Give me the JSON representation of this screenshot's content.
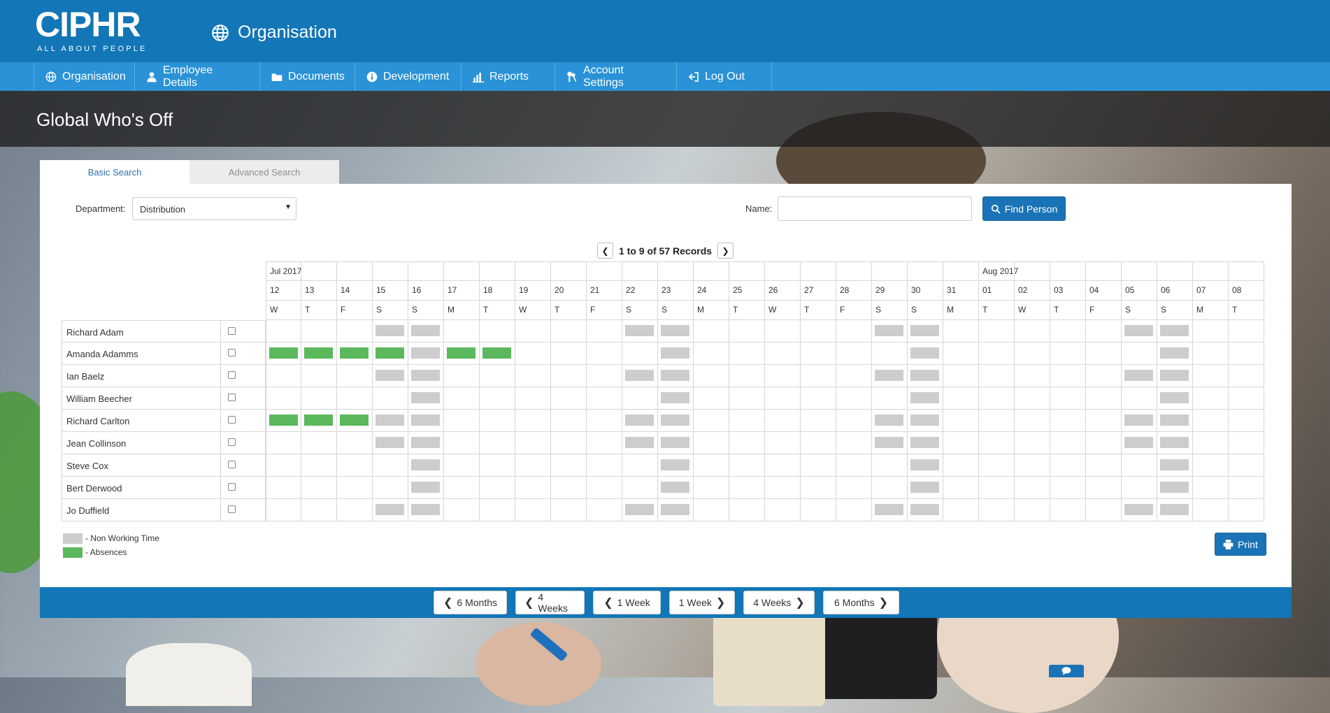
{
  "brand": {
    "name": "CIPHR",
    "tagline": "ALL ABOUT PEOPLE"
  },
  "header": {
    "section_title": "Organisation",
    "section_icon": "globe-icon"
  },
  "nav": [
    {
      "label": "Organisation",
      "icon": "globe-icon"
    },
    {
      "label": "Employee Details",
      "icon": "user-icon"
    },
    {
      "label": "Documents",
      "icon": "folder-icon"
    },
    {
      "label": "Development",
      "icon": "info-icon"
    },
    {
      "label": "Reports",
      "icon": "bar-chart-icon"
    },
    {
      "label": "Account Settings",
      "icon": "keys-icon"
    },
    {
      "label": "Log Out",
      "icon": "logout-icon"
    }
  ],
  "page": {
    "title": "Global Who's Off"
  },
  "search": {
    "tabs": {
      "basic": "Basic Search",
      "advanced": "Advanced Search",
      "active": "basic"
    },
    "department_label": "Department:",
    "department_value": "Distribution",
    "name_label": "Name:",
    "name_value": "",
    "find_button": "Find Person"
  },
  "pager": {
    "text": "1 to 9 of 57 Records"
  },
  "calendar": {
    "months": [
      {
        "label": "Jul 2017",
        "start_index": 0
      },
      {
        "label": "Aug 2017",
        "start_index": 20
      }
    ],
    "dates": [
      "12",
      "13",
      "14",
      "15",
      "16",
      "17",
      "18",
      "19",
      "20",
      "21",
      "22",
      "23",
      "24",
      "25",
      "26",
      "27",
      "28",
      "29",
      "30",
      "31",
      "01",
      "02",
      "03",
      "04",
      "05",
      "06",
      "07",
      "08"
    ],
    "weekdays": [
      "W",
      "T",
      "F",
      "S",
      "S",
      "M",
      "T",
      "W",
      "T",
      "F",
      "S",
      "S",
      "M",
      "T",
      "W",
      "T",
      "F",
      "S",
      "S",
      "M",
      "T",
      "W",
      "T",
      "F",
      "S",
      "S",
      "M",
      "T"
    ]
  },
  "employees": [
    {
      "name": "Richard Adam",
      "nonworking": [
        3,
        4,
        10,
        11,
        17,
        18,
        24,
        25
      ],
      "absences": []
    },
    {
      "name": "Amanda Adamms",
      "nonworking": [
        4,
        11,
        18,
        25
      ],
      "absences": [
        0,
        1,
        2,
        3,
        5,
        6
      ]
    },
    {
      "name": "Ian Baelz",
      "nonworking": [
        3,
        4,
        10,
        11,
        17,
        18,
        24,
        25
      ],
      "absences": []
    },
    {
      "name": "William Beecher",
      "nonworking": [
        4,
        11,
        18,
        25
      ],
      "absences": []
    },
    {
      "name": "Richard Carlton",
      "nonworking": [
        3,
        4,
        10,
        11,
        17,
        18,
        24,
        25
      ],
      "absences": [
        0,
        1,
        2
      ]
    },
    {
      "name": "Jean Collinson",
      "nonworking": [
        3,
        4,
        10,
        11,
        17,
        18,
        24,
        25
      ],
      "absences": []
    },
    {
      "name": "Steve Cox",
      "nonworking": [
        4,
        11,
        18,
        25
      ],
      "absences": []
    },
    {
      "name": "Bert Derwood",
      "nonworking": [
        4,
        11,
        18,
        25
      ],
      "absences": []
    },
    {
      "name": "Jo Duffield",
      "nonworking": [
        3,
        4,
        10,
        11,
        17,
        18,
        24,
        25
      ],
      "absences": []
    }
  ],
  "legend": {
    "nonworking": "- Non Working Time",
    "absences": "- Absences"
  },
  "colors": {
    "brand_blue": "#1276b7",
    "nav_blue": "#2a92d6",
    "absence": "#5cb85c",
    "nonworking": "#cdcdcd"
  },
  "actions": {
    "print": "Print"
  },
  "range_nav": [
    {
      "label": "6 Months",
      "direction": "prev"
    },
    {
      "label": "4 Weeks",
      "direction": "prev"
    },
    {
      "label": "1 Week",
      "direction": "prev"
    },
    {
      "label": "1 Week",
      "direction": "next"
    },
    {
      "label": "4 Weeks",
      "direction": "next"
    },
    {
      "label": "6 Months",
      "direction": "next"
    }
  ]
}
